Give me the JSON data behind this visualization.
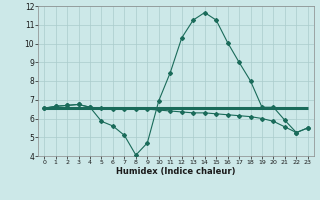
{
  "xlabel": "Humidex (Indice chaleur)",
  "bg_color": "#cce8e8",
  "grid_color": "#aacccc",
  "line_color": "#1a6b5a",
  "xlim": [
    -0.5,
    23.5
  ],
  "ylim": [
    4,
    12
  ],
  "yticks": [
    4,
    5,
    6,
    7,
    8,
    9,
    10,
    11,
    12
  ],
  "xticks": [
    0,
    1,
    2,
    3,
    4,
    5,
    6,
    7,
    8,
    9,
    10,
    11,
    12,
    13,
    14,
    15,
    16,
    17,
    18,
    19,
    20,
    21,
    22,
    23
  ],
  "line1_x": [
    0,
    1,
    2,
    3,
    4,
    5,
    6,
    7,
    8,
    9,
    10,
    11,
    12,
    13,
    14,
    15,
    16,
    17,
    18,
    19,
    20,
    21,
    22,
    23
  ],
  "line1_y": [
    6.55,
    6.65,
    6.7,
    6.75,
    6.6,
    6.55,
    6.5,
    6.5,
    6.5,
    6.5,
    6.45,
    6.4,
    6.35,
    6.3,
    6.3,
    6.25,
    6.2,
    6.15,
    6.1,
    6.0,
    5.85,
    5.55,
    5.25,
    5.5
  ],
  "line2_x": [
    0,
    1,
    2,
    3,
    4,
    5,
    6,
    7,
    8,
    9,
    10,
    11,
    12,
    13,
    14,
    15,
    16,
    17,
    18,
    19,
    20,
    21,
    22,
    23
  ],
  "line2_y": [
    6.55,
    6.65,
    6.7,
    6.75,
    6.6,
    5.85,
    5.6,
    5.1,
    4.05,
    4.7,
    6.95,
    8.45,
    10.3,
    11.25,
    11.65,
    11.25,
    10.05,
    9.0,
    8.0,
    6.6,
    6.6,
    5.9,
    5.25,
    5.5
  ],
  "line3_x": [
    0,
    23
  ],
  "line3_y": [
    6.55,
    6.55
  ]
}
